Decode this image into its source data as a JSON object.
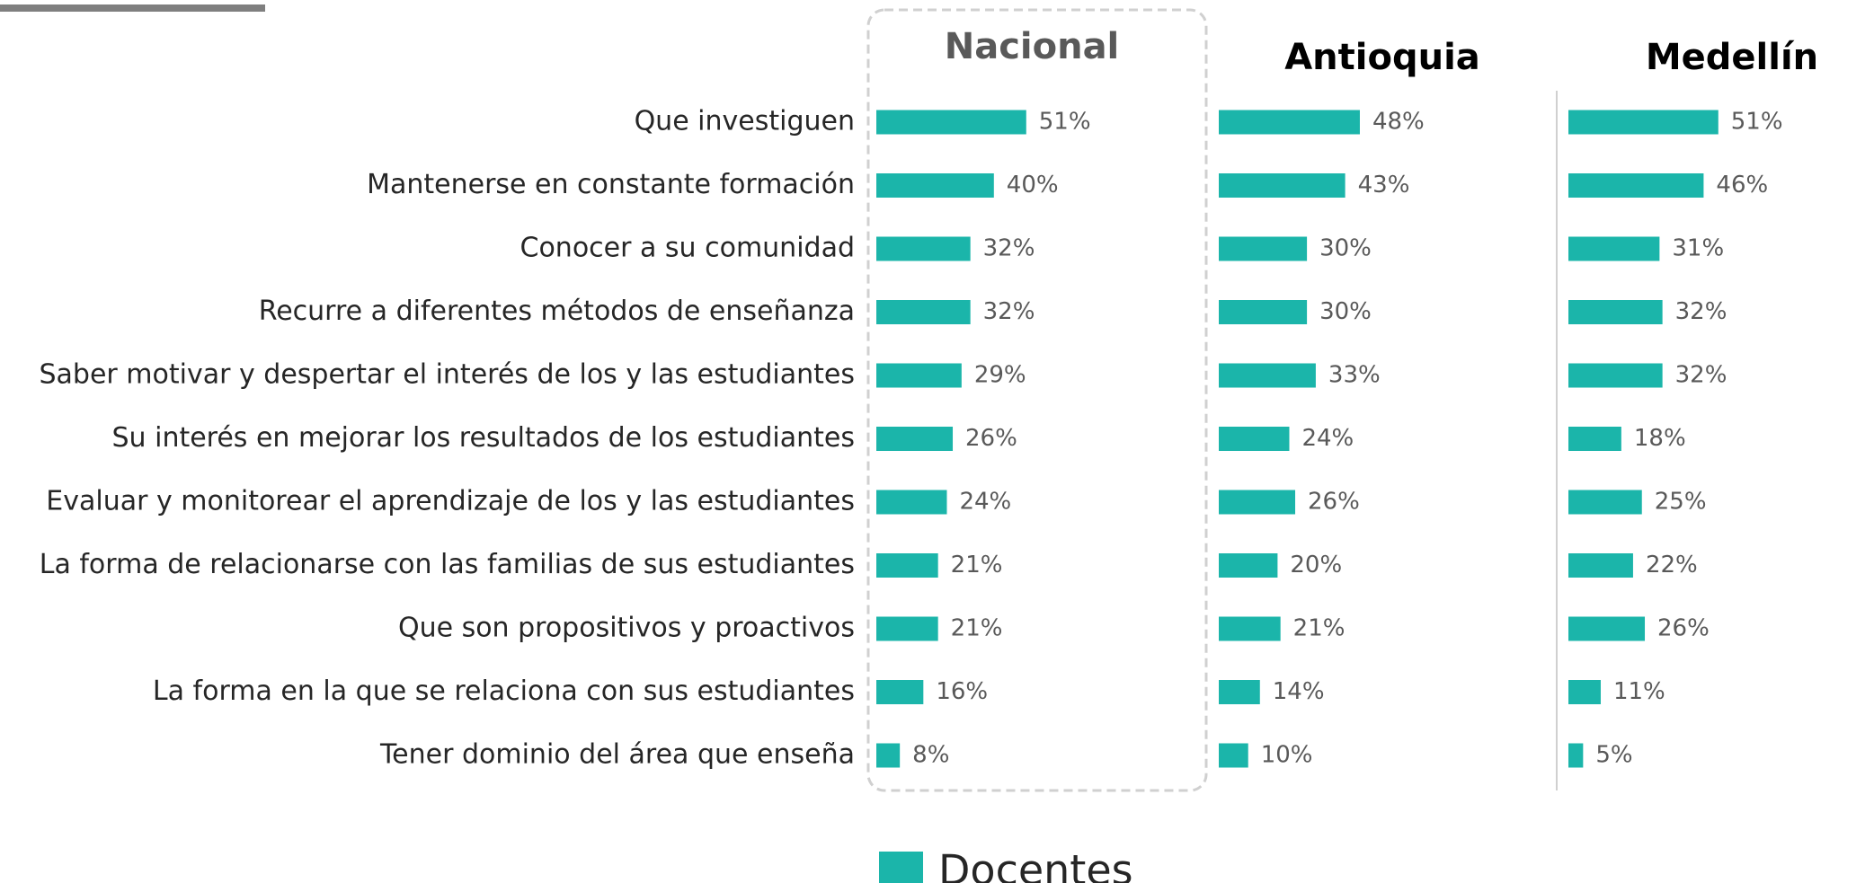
{
  "chart_data": {
    "type": "bar",
    "categories": [
      "Que investiguen",
      "Mantenerse en constante formación",
      "Conocer a su comunidad",
      "Recurre a diferentes métodos de enseñanza",
      "Saber motivar y despertar el interés de los y las estudiantes",
      "Su interés en mejorar los resultados de los estudiantes",
      "Evaluar y monitorear el aprendizaje de los y las estudiantes",
      "La forma de relacionarse con las familias de sus estudiantes",
      "Que son propositivos y proactivos",
      "La forma en la que se relaciona con sus estudiantes",
      "Tener dominio del área que enseña"
    ],
    "series": [
      {
        "name": "Nacional",
        "color": "#1bb5aa",
        "values": [
          51,
          40,
          32,
          32,
          29,
          26,
          24,
          21,
          21,
          16,
          8
        ],
        "value_labels": [
          "51%",
          "40%",
          "32%",
          "32%",
          "29%",
          "26%",
          "24%",
          "21%",
          "21%",
          "16%",
          "8%"
        ]
      },
      {
        "name": "Antioquia",
        "color": "#1bb5aa",
        "values": [
          48,
          43,
          30,
          30,
          33,
          24,
          26,
          20,
          21,
          14,
          10
        ],
        "value_labels": [
          "48%",
          "43%",
          "30%",
          "30%",
          "33%",
          "24%",
          "26%",
          "20%",
          "21%",
          "14%",
          "10%"
        ]
      },
      {
        "name": "Medellín",
        "color": "#1bb5aa",
        "values": [
          51,
          46,
          31,
          32,
          32,
          18,
          25,
          22,
          26,
          11,
          5
        ],
        "value_labels": [
          "51%",
          "46%",
          "31%",
          "32%",
          "32%",
          "18%",
          "25%",
          "22%",
          "26%",
          "11%",
          "5%"
        ]
      }
    ],
    "legend_label": "Docentes"
  }
}
